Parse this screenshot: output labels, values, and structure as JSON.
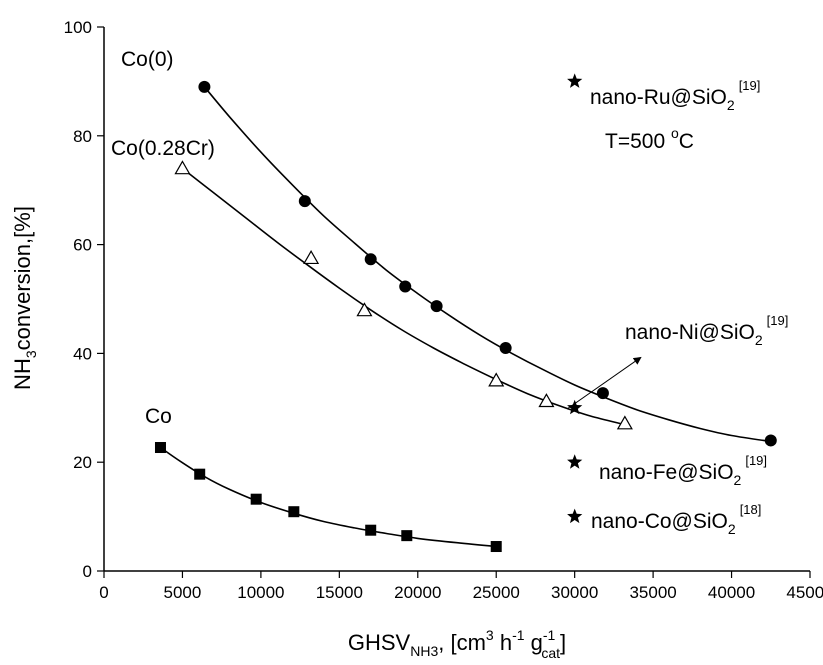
{
  "chart_data": {
    "type": "scatter",
    "title": "",
    "xlabel": {
      "main": "GHSV",
      "sub1": "NH3",
      "part2": ", [cm",
      "sup1": "3",
      "part3": " h",
      "sup2": "-1",
      "part4": " g",
      "sup3": "-1",
      "sub3": "cat",
      "part5": "]"
    },
    "ylabel": {
      "part1": "NH",
      "sub1": "3",
      "part2": "conversion,[%]"
    },
    "xlim": [
      0,
      45000
    ],
    "ylim": [
      0,
      100
    ],
    "x_ticks": [
      0,
      5000,
      10000,
      15000,
      20000,
      25000,
      30000,
      35000,
      40000,
      45000
    ],
    "y_ticks": [
      0,
      20,
      40,
      60,
      80,
      100
    ],
    "grid": false,
    "annotation": {
      "text_a": "T=500 ",
      "sup": "o",
      "text_b": "C"
    },
    "series": [
      {
        "name": "Co(0)",
        "marker": "filled-circle",
        "points": [
          [
            6400,
            89.0
          ],
          [
            12800,
            68.0
          ],
          [
            17000,
            57.3
          ],
          [
            19200,
            52.3
          ],
          [
            21200,
            48.7
          ],
          [
            25600,
            41.0
          ],
          [
            31800,
            32.7
          ],
          [
            42500,
            24.0
          ]
        ],
        "fit": [
          [
            6400,
            89.0
          ],
          [
            8000,
            83.5
          ],
          [
            10000,
            77.0
          ],
          [
            12000,
            71.0
          ],
          [
            14000,
            65.3
          ],
          [
            16000,
            60.2
          ],
          [
            18000,
            55.3
          ],
          [
            20000,
            51.0
          ],
          [
            22000,
            47.0
          ],
          [
            24000,
            43.3
          ],
          [
            26000,
            40.0
          ],
          [
            28000,
            37.0
          ],
          [
            30000,
            34.2
          ],
          [
            32000,
            31.8
          ],
          [
            34000,
            29.6
          ],
          [
            36000,
            27.8
          ],
          [
            38000,
            26.2
          ],
          [
            40000,
            24.9
          ],
          [
            42500,
            23.8
          ]
        ]
      },
      {
        "name": "Co(0.28Cr)",
        "marker": "open-triangle",
        "points": [
          [
            5000,
            74.0
          ],
          [
            13200,
            57.5
          ],
          [
            16600,
            47.9
          ],
          [
            25000,
            35.0
          ],
          [
            28200,
            31.2
          ],
          [
            33200,
            27.1
          ]
        ],
        "fit": [
          [
            5000,
            74.0
          ],
          [
            7000,
            69.5
          ],
          [
            9000,
            65.0
          ],
          [
            11000,
            60.5
          ],
          [
            13000,
            56.2
          ],
          [
            15000,
            52.0
          ],
          [
            17000,
            48.0
          ],
          [
            19000,
            44.3
          ],
          [
            21000,
            41.0
          ],
          [
            23000,
            38.0
          ],
          [
            25000,
            35.2
          ],
          [
            27000,
            32.6
          ],
          [
            29000,
            30.4
          ],
          [
            31000,
            28.5
          ],
          [
            33200,
            26.9
          ]
        ]
      },
      {
        "name": "Co",
        "marker": "filled-square",
        "points": [
          [
            3600,
            22.7
          ],
          [
            6100,
            17.8
          ],
          [
            9700,
            13.2
          ],
          [
            12100,
            10.9
          ],
          [
            17000,
            7.5
          ],
          [
            19300,
            6.5
          ],
          [
            25000,
            4.5
          ]
        ],
        "fit": [
          [
            3600,
            22.7
          ],
          [
            5000,
            19.9
          ],
          [
            6500,
            17.2
          ],
          [
            8000,
            15.0
          ],
          [
            10000,
            12.6
          ],
          [
            12000,
            10.7
          ],
          [
            14000,
            9.1
          ],
          [
            16000,
            7.9
          ],
          [
            18000,
            6.9
          ],
          [
            20000,
            6.0
          ],
          [
            22500,
            5.2
          ],
          [
            25000,
            4.5
          ]
        ]
      },
      {
        "name": "nano-Ru@SiO2",
        "marker": "star",
        "points": [
          [
            30000,
            90.0
          ]
        ]
      },
      {
        "name": "nano-Ni@SiO2",
        "marker": "star",
        "points": [
          [
            30000,
            30.0
          ]
        ]
      },
      {
        "name": "nano-Fe@SiO2",
        "marker": "star",
        "points": [
          [
            30000,
            20.0
          ]
        ]
      },
      {
        "name": "nano-Co@SiO2",
        "marker": "star",
        "points": [
          [
            30000,
            10.0
          ]
        ]
      }
    ],
    "labels": {
      "co0": "Co(0)",
      "co028": "Co(0.28Cr)",
      "co": "Co",
      "ru": {
        "main": "nano-Ru@SiO",
        "sub": "2",
        "ref": "[19]"
      },
      "ni": {
        "main": "nano-Ni@SiO",
        "sub": "2",
        "ref": "[19]"
      },
      "fe": {
        "main": "nano-Fe@SiO",
        "sub": "2",
        "ref": "[19]"
      },
      "coSi": {
        "main": "nano-Co@SiO",
        "sub": "2",
        "ref": "[18]"
      }
    }
  }
}
